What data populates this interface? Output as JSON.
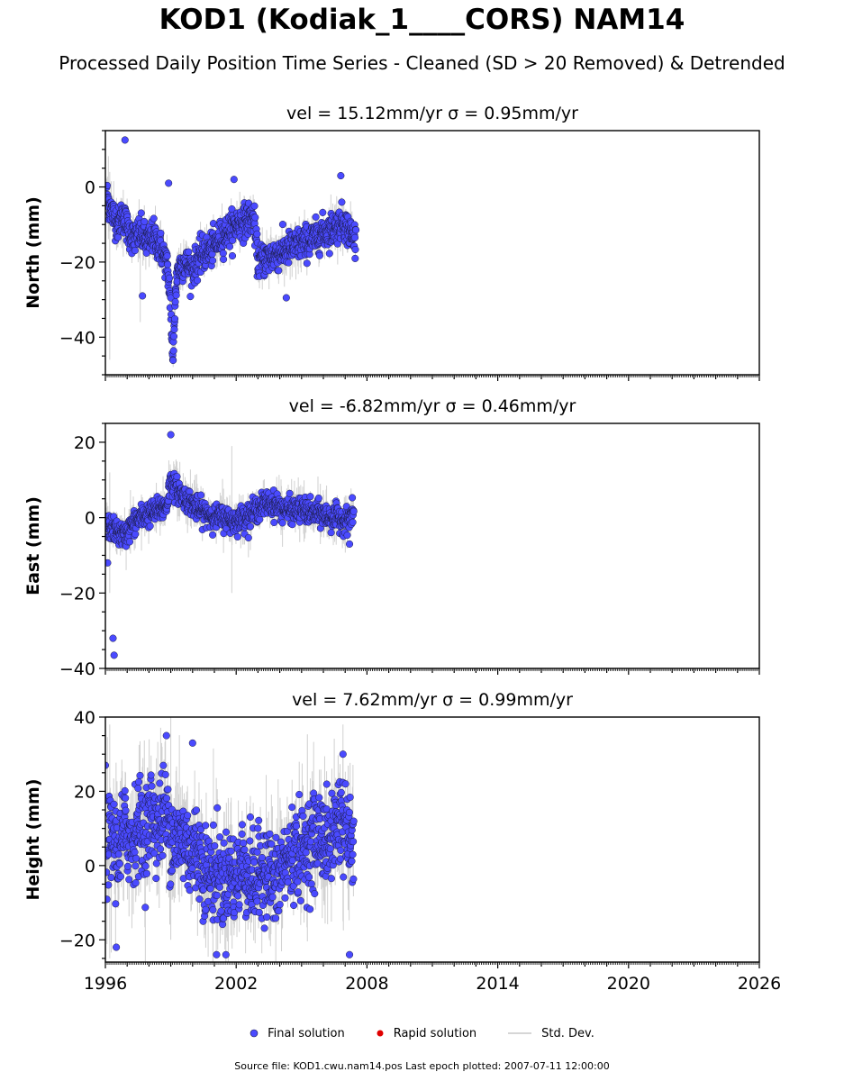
{
  "title": "KOD1 (Kodiak_1____CORS) NAM14",
  "subtitle": "Processed Daily Position Time Series - Cleaned (SD > 20 Removed) & Detrended",
  "legend": {
    "final_label": "Final solution",
    "rapid_label": "Rapid solution",
    "std_label": "Std. Dev."
  },
  "footer": "Source file: KOD1.cwu.nam14.pos  Last epoch plotted: 2007-07-11 12:00:00",
  "colors": {
    "final": "#4a4aff",
    "rapid": "#e00000",
    "stddev": "#b8b8b8",
    "marker_edge": "#1a1a40"
  },
  "chart_data": [
    {
      "type": "scatter",
      "panel": "north",
      "title": "vel = 15.12mm/yr   σ = 0.95mm/yr",
      "xlabel": "",
      "ylabel": "North (mm)",
      "xlim": [
        1996,
        2026
      ],
      "ylim": [
        -50,
        15
      ],
      "yticks": [
        0,
        -20,
        -40
      ],
      "xticks": [
        "1996",
        "2002",
        "2008",
        "2014",
        "2020",
        "2026"
      ],
      "series": [
        {
          "name": "Final solution",
          "points": [
            [
              1996.05,
              -2
            ],
            [
              1996.2,
              -5
            ],
            [
              1996.4,
              -8
            ],
            [
              1996.6,
              -10
            ],
            [
              1996.8,
              -7
            ],
            [
              1997.0,
              -11
            ],
            [
              1997.3,
              -14
            ],
            [
              1997.6,
              -12
            ],
            [
              1997.9,
              -15
            ],
            [
              1998.2,
              -13
            ],
            [
              1998.5,
              -16
            ],
            [
              1998.8,
              -20
            ],
            [
              1999.0,
              -30
            ],
            [
              1999.1,
              -40
            ],
            [
              1999.3,
              -22
            ],
            [
              1999.6,
              -20
            ],
            [
              2000.0,
              -22
            ],
            [
              2000.4,
              -18
            ],
            [
              2000.8,
              -17
            ],
            [
              2001.2,
              -14
            ],
            [
              2001.6,
              -12
            ],
            [
              2002.0,
              -10
            ],
            [
              2002.4,
              -9
            ],
            [
              2002.8,
              -8
            ],
            [
              2003.0,
              -20
            ],
            [
              2003.4,
              -19
            ],
            [
              2003.8,
              -18
            ],
            [
              2004.2,
              -17
            ],
            [
              2004.6,
              -16
            ],
            [
              2005.0,
              -15
            ],
            [
              2005.5,
              -14
            ],
            [
              2006.0,
              -12
            ],
            [
              2006.5,
              -11
            ],
            [
              2006.9,
              -9
            ],
            [
              2007.2,
              -12
            ],
            [
              2007.5,
              -14
            ]
          ],
          "outliers": [
            [
              1996.9,
              12.5
            ],
            [
              1997.7,
              -29
            ],
            [
              1998.9,
              1
            ],
            [
              2001.9,
              2
            ],
            [
              2006.8,
              3
            ],
            [
              2004.3,
              -29.5
            ]
          ]
        }
      ],
      "stddev_range": [
        [
          1996.2,
          -46,
          4
        ],
        [
          1999.2,
          -45,
          -20
        ],
        [
          1997.6,
          -36,
          -8
        ]
      ]
    },
    {
      "type": "scatter",
      "panel": "east",
      "title": "vel = -6.82mm/yr   σ = 0.46mm/yr",
      "xlabel": "",
      "ylabel": "East (mm)",
      "xlim": [
        1996,
        2026
      ],
      "ylim": [
        -40,
        25
      ],
      "yticks": [
        20,
        0,
        -20,
        -40
      ],
      "xticks": [
        "1996",
        "2002",
        "2008",
        "2014",
        "2020",
        "2026"
      ],
      "series": [
        {
          "name": "Final solution",
          "points": [
            [
              1996.05,
              -2
            ],
            [
              1996.3,
              -3
            ],
            [
              1996.6,
              -4
            ],
            [
              1996.9,
              -5
            ],
            [
              1997.2,
              -2
            ],
            [
              1997.6,
              0
            ],
            [
              1998.0,
              1
            ],
            [
              1998.4,
              2
            ],
            [
              1998.8,
              3
            ],
            [
              1999.0,
              10
            ],
            [
              1999.2,
              8
            ],
            [
              1999.5,
              6
            ],
            [
              1999.9,
              4
            ],
            [
              2000.3,
              2
            ],
            [
              2000.7,
              1
            ],
            [
              2001.1,
              0
            ],
            [
              2001.5,
              0
            ],
            [
              2001.9,
              -1
            ],
            [
              2002.3,
              0
            ],
            [
              2002.7,
              1
            ],
            [
              2003.1,
              3
            ],
            [
              2003.5,
              4
            ],
            [
              2003.9,
              3
            ],
            [
              2004.3,
              2
            ],
            [
              2004.7,
              2
            ],
            [
              2005.1,
              2
            ],
            [
              2005.5,
              1
            ],
            [
              2005.9,
              1
            ],
            [
              2006.3,
              0
            ],
            [
              2006.7,
              0
            ],
            [
              2007.0,
              -1
            ],
            [
              2007.4,
              1
            ]
          ],
          "outliers": [
            [
              1996.1,
              -12
            ],
            [
              1996.35,
              -32
            ],
            [
              1996.4,
              -36.5
            ],
            [
              1999.0,
              22
            ],
            [
              2007.2,
              -7
            ]
          ]
        }
      ],
      "stddev_range": [
        [
          1996.2,
          -20,
          12
        ],
        [
          2001.8,
          -20,
          19
        ]
      ]
    },
    {
      "type": "scatter",
      "panel": "height",
      "title": "vel = 7.62mm/yr   σ = 0.99mm/yr",
      "xlabel": "",
      "ylabel": "Height (mm)",
      "xlim": [
        1996,
        2026
      ],
      "ylim": [
        -26,
        40
      ],
      "yticks": [
        40,
        20,
        0,
        -20
      ],
      "xticks": [
        "1996",
        "2002",
        "2008",
        "2014",
        "2020",
        "2026"
      ],
      "series": [
        {
          "name": "Final solution",
          "points": [
            [
              1996.05,
              5
            ],
            [
              1996.3,
              8
            ],
            [
              1996.6,
              3
            ],
            [
              1996.9,
              10
            ],
            [
              1997.2,
              6
            ],
            [
              1997.5,
              12
            ],
            [
              1997.8,
              8
            ],
            [
              1998.1,
              14
            ],
            [
              1998.4,
              10
            ],
            [
              1998.7,
              15
            ],
            [
              1999.0,
              9
            ],
            [
              1999.3,
              6
            ],
            [
              1999.6,
              8
            ],
            [
              1999.9,
              3
            ],
            [
              2000.2,
              5
            ],
            [
              2000.5,
              0
            ],
            [
              2000.8,
              -3
            ],
            [
              2001.1,
              -1
            ],
            [
              2001.4,
              -5
            ],
            [
              2001.7,
              -2
            ],
            [
              2002.0,
              -4
            ],
            [
              2002.3,
              1
            ],
            [
              2002.6,
              -3
            ],
            [
              2002.9,
              -5
            ],
            [
              2003.2,
              0
            ],
            [
              2003.5,
              -2
            ],
            [
              2003.8,
              -6
            ],
            [
              2004.1,
              -1
            ],
            [
              2004.4,
              2
            ],
            [
              2004.7,
              4
            ],
            [
              2005.0,
              3
            ],
            [
              2005.3,
              6
            ],
            [
              2005.6,
              7
            ],
            [
              2005.9,
              9
            ],
            [
              2006.2,
              5
            ],
            [
              2006.5,
              10
            ],
            [
              2006.8,
              14
            ],
            [
              2007.1,
              8
            ],
            [
              2007.4,
              6
            ]
          ],
          "outliers": [
            [
              1996.0,
              27
            ],
            [
              1996.5,
              -22
            ],
            [
              1998.8,
              35
            ],
            [
              2000.0,
              33
            ],
            [
              2006.9,
              30
            ],
            [
              2007.2,
              -24
            ],
            [
              2001.1,
              -24
            ]
          ]
        }
      ],
      "stddev_range": [
        [
          1996.2,
          -25,
          38
        ],
        [
          1999.0,
          -20,
          40
        ],
        [
          2006.9,
          -15,
          38
        ]
      ]
    }
  ]
}
